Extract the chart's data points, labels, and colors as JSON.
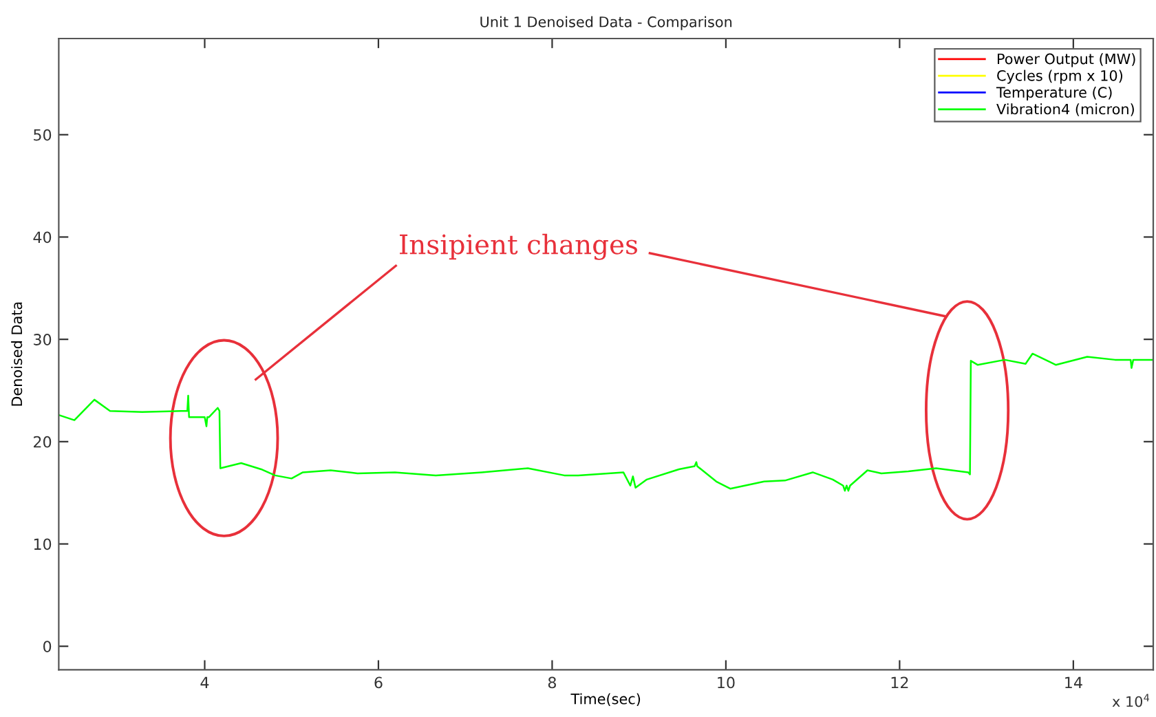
{
  "chart_data": {
    "type": "line",
    "title": "Unit 1 Denoised Data - Comparison",
    "xlabel": "Time(sec)",
    "ylabel": "Denoised Data",
    "annotations": [
      "Insipient changes",
      "x 10$^{4}$"
    ],
    "xlim": [
      2.32,
      14.92
    ],
    "xticks": [
      4,
      6,
      8,
      10,
      12,
      14
    ],
    "ylim": [
      -2.3,
      59.4
    ],
    "yticks": [
      0,
      10,
      20,
      30,
      40,
      50
    ],
    "grid": false,
    "legend": "top right",
    "marker": "none",
    "line_style": "solid",
    "series": [
      {
        "name": "Power Output (MW)",
        "color": "#ff0000"
      },
      {
        "name": "Cycles (rpm x 10)",
        "color": "#ffff00"
      },
      {
        "name": "Temperature (C)",
        "color": "#0000ff"
      },
      {
        "name": "Vibration4 (micron)",
        "color": "#00ff00",
        "x": [
          2.32,
          2.5,
          2.73,
          2.91,
          3.28,
          3.73,
          3.8,
          3.81,
          3.82,
          4.0,
          4.02,
          4.03,
          4.05,
          4.15,
          4.17,
          4.18,
          4.42,
          4.65,
          4.81,
          5.0,
          5.13,
          5.45,
          5.76,
          6.19,
          6.66,
          7.19,
          7.72,
          8.14,
          8.3,
          8.82,
          8.9,
          8.93,
          8.96,
          9.09,
          9.46,
          9.64,
          9.66,
          9.67,
          9.89,
          10.05,
          10.44,
          10.68,
          11.0,
          11.23,
          11.35,
          11.37,
          11.39,
          11.41,
          11.43,
          11.63,
          11.79,
          12.1,
          12.42,
          12.79,
          12.81,
          12.82,
          12.9,
          13.21,
          13.45,
          13.53,
          13.8,
          14.16,
          14.48,
          14.66,
          14.67,
          14.69,
          14.92
        ],
        "values": [
          22.6,
          22.1,
          24.1,
          23.0,
          22.9,
          23.0,
          23.0,
          24.5,
          22.4,
          22.4,
          21.5,
          22.4,
          22.4,
          23.3,
          23.0,
          17.4,
          17.9,
          17.3,
          16.7,
          16.4,
          17.0,
          17.2,
          16.9,
          17.0,
          16.7,
          17.0,
          17.4,
          16.7,
          16.7,
          17.0,
          15.7,
          16.6,
          15.5,
          16.3,
          17.3,
          17.6,
          18.0,
          17.6,
          16.1,
          15.4,
          16.1,
          16.2,
          17.0,
          16.3,
          15.7,
          15.2,
          15.7,
          15.2,
          15.7,
          17.2,
          16.9,
          17.1,
          17.4,
          17.0,
          16.8,
          27.9,
          27.5,
          28.0,
          27.6,
          28.6,
          27.5,
          28.3,
          28.0,
          28.0,
          27.2,
          28.0,
          28.0
        ]
      }
    ]
  }
}
